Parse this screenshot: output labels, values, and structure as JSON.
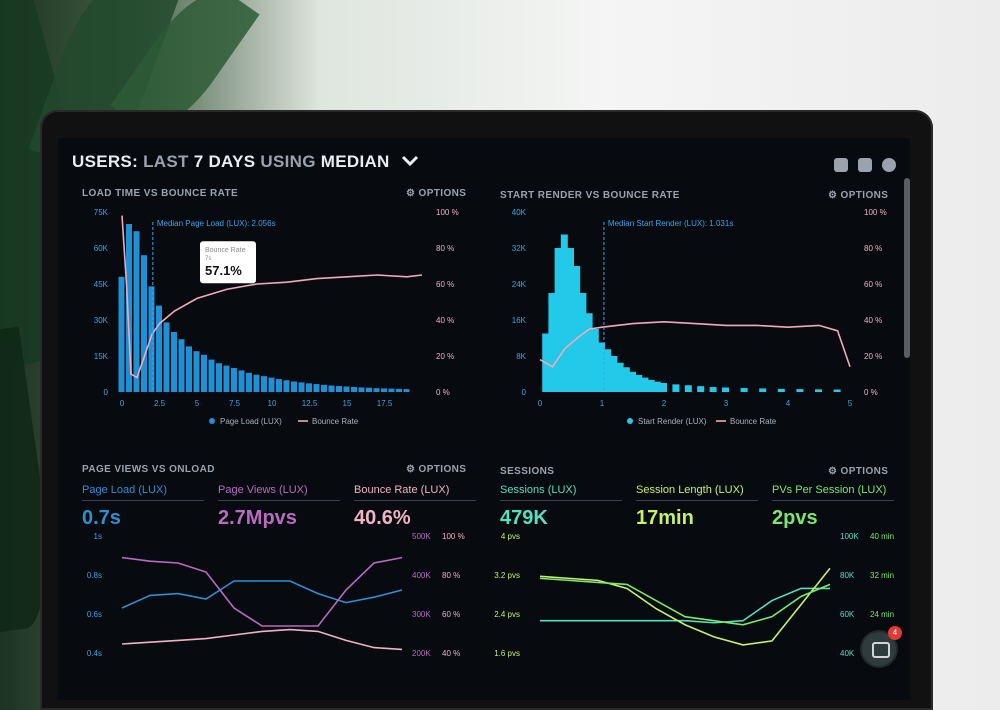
{
  "header": {
    "title_users": "USERS:",
    "title_last": "LAST",
    "title_days": "7 DAYS",
    "title_using": "USING",
    "title_median": "MEDIAN",
    "chevron": "chevron-down-icon"
  },
  "panels": {
    "load_time": {
      "title": "LOAD TIME VS BOUNCE RATE",
      "options": "⚙ OPTIONS",
      "median_note": "Median Page Load (LUX): 2.056s",
      "tooltip_label": "Bounce Rate",
      "tooltip_sub": "7s",
      "tooltip_value": "57.1%",
      "legend_bar": "Page Load (LUX)",
      "legend_line": "Bounce Rate"
    },
    "start_render": {
      "title": "START RENDER VS BOUNCE RATE",
      "options": "⚙ OPTIONS",
      "median_note": "Median Start Render (LUX): 1.031s",
      "legend_bar": "Start Render (LUX)",
      "legend_line": "Bounce Rate"
    },
    "page_views": {
      "title": "PAGE VIEWS VS ONLOAD",
      "options": "⚙ OPTIONS",
      "metrics": [
        {
          "label": "Page Load (LUX)",
          "value": "0.7s",
          "color": "#2e8fd6"
        },
        {
          "label": "Page Views (LUX)",
          "value": "2.7Mpvs",
          "color": "#b96bc3"
        },
        {
          "label": "Bounce Rate (LUX)",
          "value": "40.6%",
          "color": "#f1b2c4"
        }
      ]
    },
    "sessions": {
      "title": "SESSIONS",
      "options": "⚙ OPTIONS",
      "metrics": [
        {
          "label": "Sessions (LUX)",
          "value": "479K",
          "color": "#54e0c0"
        },
        {
          "label": "Session Length (LUX)",
          "value": "17min",
          "color": "#c6f26b"
        },
        {
          "label": "PVs Per Session (LUX)",
          "value": "2pvs",
          "color": "#7be86d"
        }
      ]
    }
  },
  "chat_badge": "4",
  "chart_data": [
    {
      "type": "bar",
      "title": "LOAD TIME VS BOUNCE RATE",
      "x_ticks": [
        "0",
        "2.5",
        "5",
        "7.5",
        "10",
        "12.5",
        "15",
        "17.5"
      ],
      "y_ticks_left": [
        "75K",
        "60K",
        "45K",
        "30K",
        "15K",
        "0"
      ],
      "y_ticks_right": [
        "100 %",
        "80 %",
        "60 %",
        "40 %",
        "20 %",
        "0 %"
      ],
      "ylim_left": [
        0,
        75000
      ],
      "ylim_right": [
        0,
        100
      ],
      "xlim": [
        0,
        20
      ],
      "bar_color": "#1e90d6",
      "line_color": "#f3a9b9",
      "median_x": 2.056,
      "bars": [
        {
          "x": 0,
          "y": 48000
        },
        {
          "x": 0.5,
          "y": 70000
        },
        {
          "x": 1.0,
          "y": 67000
        },
        {
          "x": 1.5,
          "y": 57000
        },
        {
          "x": 2.0,
          "y": 44000
        },
        {
          "x": 2.5,
          "y": 36000
        },
        {
          "x": 3.0,
          "y": 29000
        },
        {
          "x": 3.5,
          "y": 25000
        },
        {
          "x": 4.0,
          "y": 22000
        },
        {
          "x": 4.5,
          "y": 19000
        },
        {
          "x": 5.0,
          "y": 17000
        },
        {
          "x": 5.5,
          "y": 15500
        },
        {
          "x": 6.0,
          "y": 13500
        },
        {
          "x": 6.5,
          "y": 12000
        },
        {
          "x": 7.0,
          "y": 11000
        },
        {
          "x": 7.5,
          "y": 10000
        },
        {
          "x": 8.0,
          "y": 9000
        },
        {
          "x": 8.5,
          "y": 8000
        },
        {
          "x": 9.0,
          "y": 7200
        },
        {
          "x": 9.5,
          "y": 6600
        },
        {
          "x": 10.0,
          "y": 6000
        },
        {
          "x": 10.5,
          "y": 5400
        },
        {
          "x": 11.0,
          "y": 4900
        },
        {
          "x": 11.5,
          "y": 4400
        },
        {
          "x": 12.0,
          "y": 4000
        },
        {
          "x": 12.5,
          "y": 3600
        },
        {
          "x": 13.0,
          "y": 3300
        },
        {
          "x": 13.5,
          "y": 3000
        },
        {
          "x": 14.0,
          "y": 2700
        },
        {
          "x": 14.5,
          "y": 2500
        },
        {
          "x": 15.0,
          "y": 2300
        },
        {
          "x": 15.5,
          "y": 2100
        },
        {
          "x": 16.0,
          "y": 1900
        },
        {
          "x": 16.5,
          "y": 1800
        },
        {
          "x": 17.0,
          "y": 1600
        },
        {
          "x": 17.5,
          "y": 1500
        },
        {
          "x": 18.0,
          "y": 1400
        },
        {
          "x": 18.5,
          "y": 1300
        },
        {
          "x": 19.0,
          "y": 1200
        }
      ],
      "line": [
        {
          "x": 0,
          "y": 98
        },
        {
          "x": 0.3,
          "y": 60
        },
        {
          "x": 0.6,
          "y": 10
        },
        {
          "x": 1.0,
          "y": 8
        },
        {
          "x": 1.5,
          "y": 20
        },
        {
          "x": 2.0,
          "y": 32
        },
        {
          "x": 2.5,
          "y": 38
        },
        {
          "x": 3.5,
          "y": 45
        },
        {
          "x": 5.0,
          "y": 52
        },
        {
          "x": 7.0,
          "y": 57.1
        },
        {
          "x": 9.0,
          "y": 60
        },
        {
          "x": 11.0,
          "y": 61
        },
        {
          "x": 13.0,
          "y": 63
        },
        {
          "x": 15.0,
          "y": 64
        },
        {
          "x": 17.0,
          "y": 65
        },
        {
          "x": 19.0,
          "y": 64
        },
        {
          "x": 20.0,
          "y": 65
        }
      ]
    },
    {
      "type": "bar",
      "title": "START RENDER VS BOUNCE RATE",
      "x_ticks": [
        "0",
        "1",
        "2",
        "3",
        "4",
        "5"
      ],
      "y_ticks_left": [
        "40K",
        "32K",
        "24K",
        "16K",
        "8K",
        "0"
      ],
      "y_ticks_right": [
        "100 %",
        "80 %",
        "60 %",
        "40 %",
        "20 %",
        "0 %"
      ],
      "ylim_left": [
        0,
        40000
      ],
      "ylim_right": [
        0,
        100
      ],
      "xlim": [
        0,
        5
      ],
      "bar_color": "#22c9e8",
      "line_color": "#f3a9b9",
      "median_x": 1.031,
      "bars": [
        {
          "x": 0.1,
          "y": 13000
        },
        {
          "x": 0.2,
          "y": 22000
        },
        {
          "x": 0.3,
          "y": 32000
        },
        {
          "x": 0.4,
          "y": 35000
        },
        {
          "x": 0.5,
          "y": 32000
        },
        {
          "x": 0.6,
          "y": 28000
        },
        {
          "x": 0.7,
          "y": 22000
        },
        {
          "x": 0.8,
          "y": 17500
        },
        {
          "x": 0.9,
          "y": 14000
        },
        {
          "x": 1.0,
          "y": 11000
        },
        {
          "x": 1.1,
          "y": 9500
        },
        {
          "x": 1.2,
          "y": 8000
        },
        {
          "x": 1.3,
          "y": 6500
        },
        {
          "x": 1.4,
          "y": 5500
        },
        {
          "x": 1.5,
          "y": 4500
        },
        {
          "x": 1.6,
          "y": 3800
        },
        {
          "x": 1.7,
          "y": 3200
        },
        {
          "x": 1.8,
          "y": 2700
        },
        {
          "x": 1.9,
          "y": 2300
        },
        {
          "x": 2.0,
          "y": 2000
        },
        {
          "x": 2.2,
          "y": 1700
        },
        {
          "x": 2.4,
          "y": 1500
        },
        {
          "x": 2.6,
          "y": 1300
        },
        {
          "x": 2.8,
          "y": 1100
        },
        {
          "x": 3.0,
          "y": 1000
        },
        {
          "x": 3.3,
          "y": 900
        },
        {
          "x": 3.6,
          "y": 800
        },
        {
          "x": 3.9,
          "y": 700
        },
        {
          "x": 4.2,
          "y": 650
        },
        {
          "x": 4.5,
          "y": 600
        },
        {
          "x": 4.8,
          "y": 550
        }
      ],
      "line": [
        {
          "x": 0,
          "y": 18
        },
        {
          "x": 0.2,
          "y": 14
        },
        {
          "x": 0.4,
          "y": 24
        },
        {
          "x": 0.6,
          "y": 30
        },
        {
          "x": 0.8,
          "y": 35
        },
        {
          "x": 1.0,
          "y": 36
        },
        {
          "x": 1.5,
          "y": 38
        },
        {
          "x": 2.0,
          "y": 39
        },
        {
          "x": 2.5,
          "y": 38
        },
        {
          "x": 3.0,
          "y": 37
        },
        {
          "x": 3.5,
          "y": 37
        },
        {
          "x": 4.0,
          "y": 36
        },
        {
          "x": 4.5,
          "y": 37
        },
        {
          "x": 4.8,
          "y": 34
        },
        {
          "x": 5.0,
          "y": 14
        }
      ]
    },
    {
      "type": "line",
      "title": "PAGE VIEWS VS ONLOAD",
      "y_ticks_left": [
        "1s",
        "0.8s",
        "0.6s",
        "0.4s"
      ],
      "y_ticks_mid": [
        "500K",
        "400K",
        "300K",
        "200K"
      ],
      "y_ticks_right": [
        "100 %",
        "80 %",
        "60 %",
        "40 %"
      ],
      "xlim": [
        0,
        10
      ],
      "ylim": [
        0.35,
        1.0
      ],
      "series": [
        {
          "name": "Page Load (LUX)",
          "color": "#2e8fd6",
          "y": [
            0.6,
            0.67,
            0.68,
            0.65,
            0.75,
            0.75,
            0.75,
            0.68,
            0.63,
            0.66,
            0.7
          ]
        },
        {
          "name": "Page Views (LUX)",
          "color": "#b96bc3",
          "y": [
            0.88,
            0.86,
            0.85,
            0.8,
            0.6,
            0.5,
            0.5,
            0.5,
            0.7,
            0.85,
            0.88
          ]
        },
        {
          "name": "Bounce Rate (LUX)",
          "color": "#f1b2c4",
          "y": [
            0.4,
            0.41,
            0.42,
            0.43,
            0.45,
            0.47,
            0.48,
            0.47,
            0.42,
            0.38,
            0.37
          ]
        }
      ]
    },
    {
      "type": "line",
      "title": "SESSIONS",
      "y_ticks_left": [
        "4 pvs",
        "3.2 pvs",
        "2.4 pvs",
        "1.6 pvs"
      ],
      "y_ticks_mid": [
        "100K",
        "80K",
        "60K",
        "40K"
      ],
      "y_ticks_right": [
        "40 min",
        "32 min",
        "24 min",
        "16 min"
      ],
      "xlim": [
        0,
        10
      ],
      "ylim": [
        1.3,
        4.2
      ],
      "series": [
        {
          "name": "Sessions (LUX)",
          "color": "#54e0c0",
          "y": [
            2.1,
            2.1,
            2.1,
            2.1,
            2.1,
            2.1,
            2.05,
            2.1,
            2.6,
            2.9,
            2.9
          ]
        },
        {
          "name": "Session Length (LUX)",
          "color": "#c6f26b",
          "y": [
            3.2,
            3.15,
            3.1,
            2.9,
            2.4,
            2.0,
            1.7,
            1.5,
            1.6,
            2.5,
            3.4
          ]
        },
        {
          "name": "PVs Per Session (LUX)",
          "color": "#7be86d",
          "y": [
            3.15,
            3.1,
            3.05,
            3.0,
            2.6,
            2.2,
            2.1,
            2.0,
            2.2,
            2.7,
            3.0
          ]
        }
      ]
    }
  ]
}
